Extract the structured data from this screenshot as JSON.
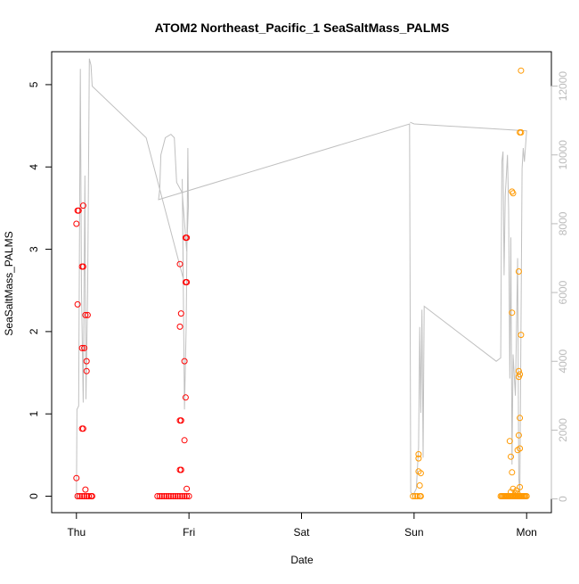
{
  "chart_data": {
    "type": "scatter",
    "title": "ATOM2 Northeast_Pacific_1 SeaSaltMass_PALMS",
    "xlabel": "Date",
    "ylabel": "SeaSaltMass_PALMS",
    "x_tick_labels": [
      "Thu",
      "Fri",
      "Sat",
      "Sun",
      "Mon"
    ],
    "x_unit": "days since Thu 00:00",
    "xlim": [
      -0.22,
      4.22
    ],
    "ylim": [
      -0.2,
      5.4
    ],
    "y_ticks": [
      0,
      1,
      2,
      3,
      4,
      5
    ],
    "y2lim": [
      -400,
      13000
    ],
    "y2_ticks": [
      0,
      2000,
      4000,
      6000,
      8000,
      10000,
      12000
    ],
    "grid": false,
    "colors": {
      "series_a": "#ff0000",
      "series_b": "#ff9900",
      "altitude_line": "#c0c0c0",
      "right_axis": "#bbbbbb",
      "axis": "#000000"
    },
    "series": [
      {
        "color": "#ff0000",
        "points": [
          [
            0.01,
            3.47
          ],
          [
            0.02,
            3.47
          ],
          [
            0.0,
            3.31
          ],
          [
            0.01,
            2.33
          ],
          [
            0.0,
            0.22
          ],
          [
            0.06,
            3.53
          ],
          [
            0.05,
            2.79
          ],
          [
            0.06,
            2.79
          ],
          [
            0.05,
            1.8
          ],
          [
            0.07,
            1.8
          ],
          [
            0.08,
            2.2
          ],
          [
            0.1,
            2.2
          ],
          [
            0.09,
            1.64
          ],
          [
            0.09,
            1.52
          ],
          [
            0.05,
            0.82
          ],
          [
            0.06,
            0.82
          ],
          [
            0.08,
            0.08
          ],
          [
            0.01,
            0.0
          ],
          [
            0.03,
            0.0
          ],
          [
            0.05,
            0.0
          ],
          [
            0.07,
            0.0
          ],
          [
            0.09,
            0.0
          ],
          [
            0.11,
            0.0
          ],
          [
            0.13,
            0.0
          ],
          [
            0.14,
            0.0
          ],
          [
            0.92,
            2.82
          ],
          [
            0.97,
            3.14
          ],
          [
            0.98,
            3.14
          ],
          [
            0.97,
            2.6
          ],
          [
            0.98,
            2.6
          ],
          [
            0.93,
            2.22
          ],
          [
            0.92,
            2.06
          ],
          [
            0.96,
            1.64
          ],
          [
            0.97,
            1.2
          ],
          [
            0.92,
            0.92
          ],
          [
            0.93,
            0.92
          ],
          [
            0.96,
            0.68
          ],
          [
            0.92,
            0.32
          ],
          [
            0.93,
            0.32
          ],
          [
            0.98,
            0.09
          ],
          [
            0.72,
            0.0
          ],
          [
            0.74,
            0.0
          ],
          [
            0.76,
            0.0
          ],
          [
            0.78,
            0.0
          ],
          [
            0.8,
            0.0
          ],
          [
            0.82,
            0.0
          ],
          [
            0.84,
            0.0
          ],
          [
            0.86,
            0.0
          ],
          [
            0.88,
            0.0
          ],
          [
            0.9,
            0.0
          ],
          [
            0.92,
            0.0
          ],
          [
            0.94,
            0.0
          ],
          [
            0.96,
            0.0
          ],
          [
            0.98,
            0.0
          ],
          [
            1.0,
            0.0
          ]
        ]
      },
      {
        "color": "#ff9900",
        "points": [
          [
            3.04,
            0.51
          ],
          [
            3.04,
            0.46
          ],
          [
            3.04,
            0.3
          ],
          [
            3.06,
            0.28
          ],
          [
            3.05,
            0.13
          ],
          [
            2.99,
            0.0
          ],
          [
            3.01,
            0.0
          ],
          [
            3.03,
            0.0
          ],
          [
            3.05,
            0.0
          ],
          [
            3.06,
            0.0
          ],
          [
            3.95,
            5.17
          ],
          [
            3.94,
            4.42
          ],
          [
            3.95,
            4.42
          ],
          [
            3.87,
            3.7
          ],
          [
            3.88,
            3.68
          ],
          [
            3.93,
            2.73
          ],
          [
            3.87,
            2.23
          ],
          [
            3.95,
            1.96
          ],
          [
            3.93,
            1.52
          ],
          [
            3.94,
            1.48
          ],
          [
            3.93,
            1.45
          ],
          [
            3.94,
            0.95
          ],
          [
            3.93,
            0.74
          ],
          [
            3.85,
            0.67
          ],
          [
            3.94,
            0.58
          ],
          [
            3.92,
            0.56
          ],
          [
            3.86,
            0.48
          ],
          [
            3.87,
            0.29
          ],
          [
            3.94,
            0.11
          ],
          [
            3.88,
            0.09
          ],
          [
            3.91,
            0.07
          ],
          [
            3.86,
            0.05
          ],
          [
            3.9,
            0.04
          ],
          [
            3.92,
            0.03
          ],
          [
            3.77,
            0.0
          ],
          [
            3.78,
            0.0
          ],
          [
            3.79,
            0.0
          ],
          [
            3.8,
            0.0
          ],
          [
            3.81,
            0.0
          ],
          [
            3.82,
            0.0
          ],
          [
            3.83,
            0.0
          ],
          [
            3.84,
            0.0
          ],
          [
            3.85,
            0.0
          ],
          [
            3.86,
            0.0
          ],
          [
            3.87,
            0.0
          ],
          [
            3.88,
            0.0
          ],
          [
            3.89,
            0.0
          ],
          [
            3.9,
            0.0
          ],
          [
            3.91,
            0.0
          ],
          [
            3.92,
            0.0
          ],
          [
            3.93,
            0.0
          ],
          [
            3.94,
            0.0
          ],
          [
            3.95,
            0.0
          ],
          [
            3.96,
            0.0
          ],
          [
            3.97,
            0.0
          ],
          [
            3.98,
            0.0
          ],
          [
            3.99,
            0.0
          ],
          [
            4.0,
            0.0
          ]
        ]
      }
    ],
    "altitude_line": [
      [
        0.0,
        0
      ],
      [
        0.005,
        2600
      ],
      [
        0.02,
        2700
      ],
      [
        0.035,
        12500
      ],
      [
        0.045,
        6000
      ],
      [
        0.06,
        2800
      ],
      [
        0.075,
        9400
      ],
      [
        0.085,
        2900
      ],
      [
        0.1,
        6000
      ],
      [
        0.115,
        12800
      ],
      [
        0.13,
        12600
      ],
      [
        0.14,
        12000
      ],
      [
        0.62,
        10500
      ],
      [
        0.95,
        6400
      ],
      [
        0.94,
        9300
      ],
      [
        0.96,
        2600
      ],
      [
        0.975,
        5000
      ],
      [
        0.99,
        10200
      ],
      [
        0.995,
        8500
      ],
      [
        0.98,
        7200
      ],
      [
        0.94,
        8900
      ],
      [
        0.89,
        9200
      ],
      [
        0.87,
        10500
      ],
      [
        0.84,
        10600
      ],
      [
        0.79,
        10500
      ],
      [
        0.75,
        10000
      ],
      [
        0.74,
        9000
      ],
      [
        0.73,
        8700
      ],
      [
        2.96,
        10900
      ],
      [
        2.97,
        200
      ],
      [
        2.99,
        100
      ],
      [
        3.02,
        300
      ],
      [
        3.04,
        1500
      ],
      [
        3.05,
        5000
      ],
      [
        3.06,
        2500
      ],
      [
        3.07,
        5500
      ],
      [
        3.08,
        1200
      ],
      [
        3.09,
        5600
      ],
      [
        3.73,
        4000
      ],
      [
        3.77,
        4100
      ],
      [
        3.78,
        9800
      ],
      [
        3.79,
        10100
      ],
      [
        3.8,
        6500
      ],
      [
        3.81,
        8800
      ],
      [
        3.83,
        10000
      ],
      [
        3.84,
        8400
      ],
      [
        3.85,
        3500
      ],
      [
        3.86,
        7600
      ],
      [
        3.87,
        1000
      ],
      [
        3.88,
        4200
      ],
      [
        3.9,
        3000
      ],
      [
        3.92,
        7000
      ],
      [
        3.93,
        600
      ],
      [
        3.94,
        200
      ],
      [
        3.96,
        9600
      ],
      [
        3.97,
        10200
      ],
      [
        3.98,
        9800
      ],
      [
        4.0,
        10700
      ],
      [
        3.0,
        10900
      ],
      [
        2.965,
        10950
      ]
    ]
  }
}
